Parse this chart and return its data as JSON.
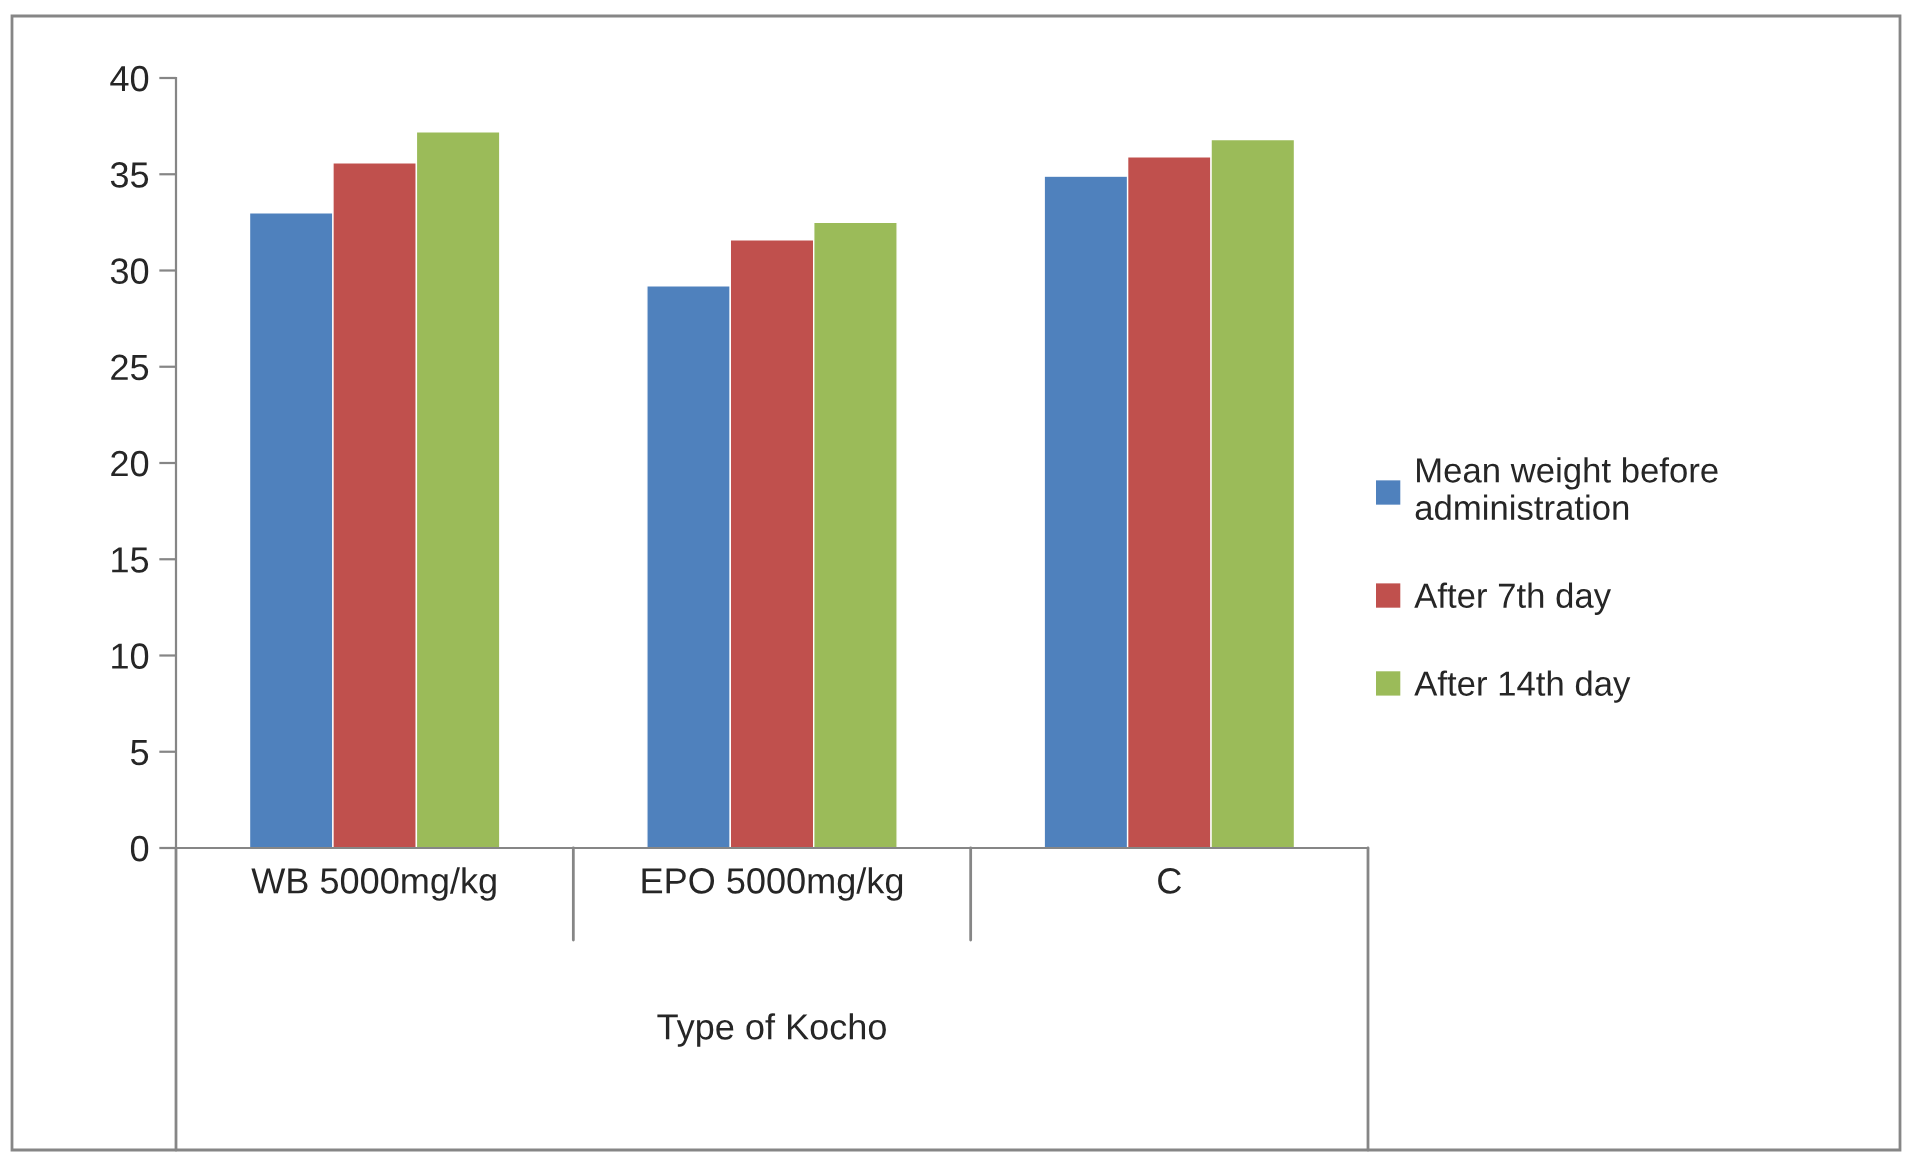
{
  "chart_data": {
    "type": "bar",
    "xlabel": "Type of Kocho",
    "categories": [
      "WB 5000mg/kg",
      "EPO 5000mg/kg",
      "C"
    ],
    "series": [
      {
        "name": "Mean weight before administration",
        "color": "#4f81bd",
        "values": [
          33.0,
          29.2,
          34.9
        ]
      },
      {
        "name": "After 7th day",
        "color": "#c0504d",
        "values": [
          35.6,
          31.6,
          35.9
        ]
      },
      {
        "name": "After 14th day",
        "color": "#9bbb59",
        "values": [
          37.2,
          32.5,
          36.8
        ]
      }
    ],
    "ylim": [
      0,
      40
    ],
    "yticks": [
      0,
      5,
      10,
      15,
      20,
      25,
      30,
      35,
      40
    ],
    "grid": false,
    "legend": "right"
  }
}
